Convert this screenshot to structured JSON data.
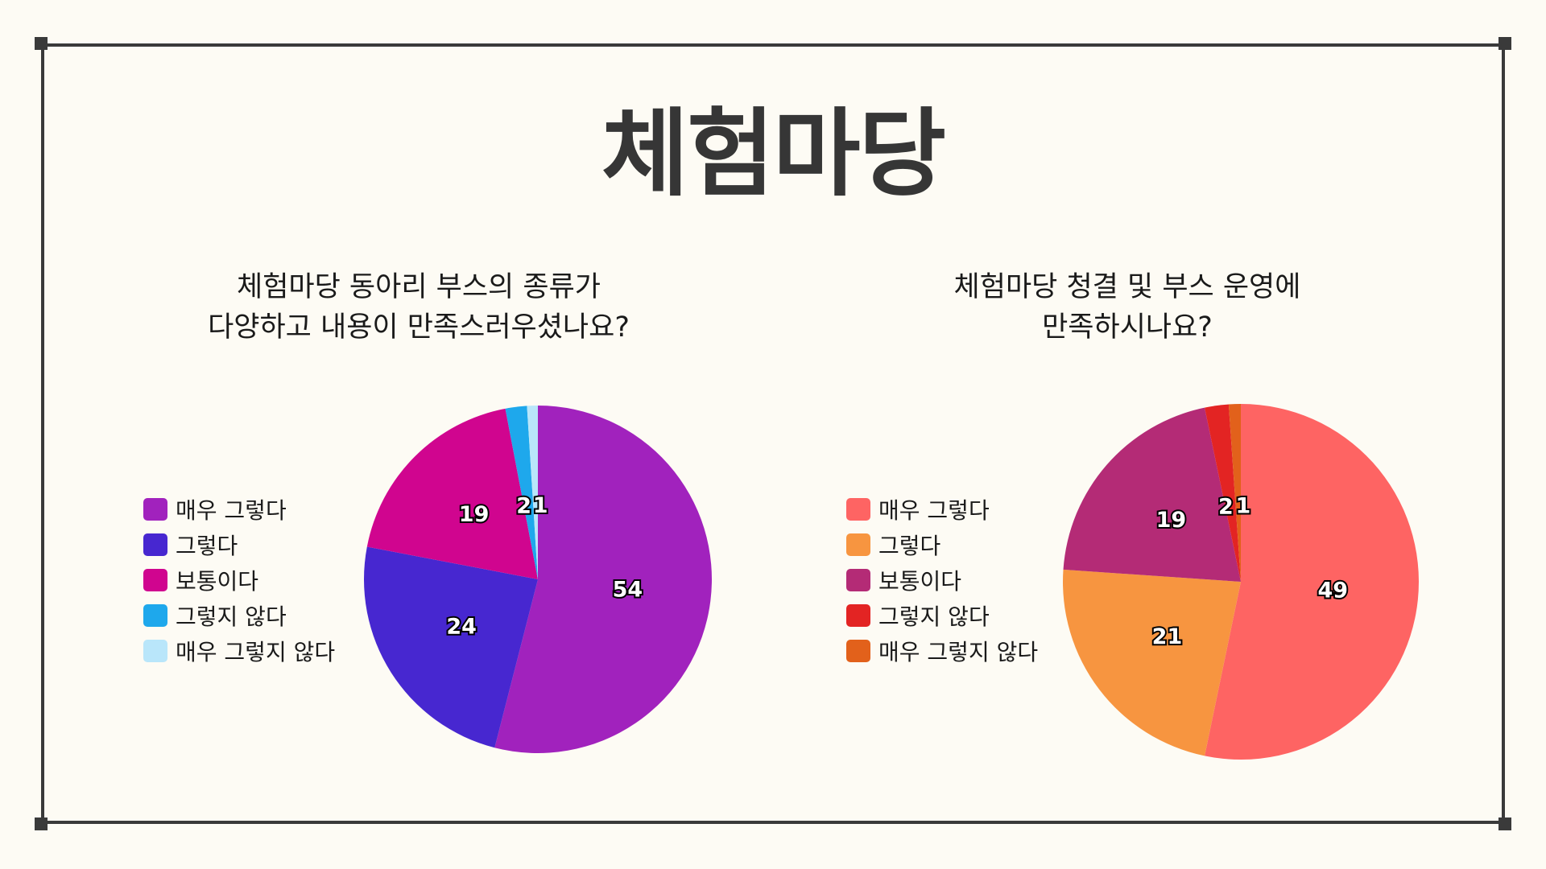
{
  "page": {
    "title": "체험마당"
  },
  "chart_data": [
    {
      "type": "pie",
      "title": [
        "체험마당 동아리 부스의 종류가",
        "다양하고 내용이 만족스러우셨나요?"
      ],
      "categories": [
        "매우 그렇다",
        "그렇다",
        "보통이다",
        "그렇지 않다",
        "매우 그렇지 않다"
      ],
      "values": [
        54,
        24,
        19,
        2,
        1
      ],
      "data_labels": [
        "54",
        "24",
        "19",
        "2",
        "1"
      ],
      "colors": [
        "#a122bd",
        "#4727d0",
        "#d0058f",
        "#1ea8ec",
        "#b9e6fa"
      ],
      "legend": "left"
    },
    {
      "type": "pie",
      "title": [
        "체험마당 청결 및 부스 운영에",
        "만족하시나요?"
      ],
      "categories": [
        "매우 그렇다",
        "그렇다",
        "보통이다",
        "그렇지 않다",
        "매우 그렇지 않다"
      ],
      "values": [
        49,
        21,
        19,
        2,
        1
      ],
      "data_labels": [
        "49",
        "21",
        "19",
        "2",
        "1"
      ],
      "colors": [
        "#fe6463",
        "#f79540",
        "#b42b76",
        "#e32423",
        "#e2611b"
      ],
      "legend": "left"
    }
  ]
}
